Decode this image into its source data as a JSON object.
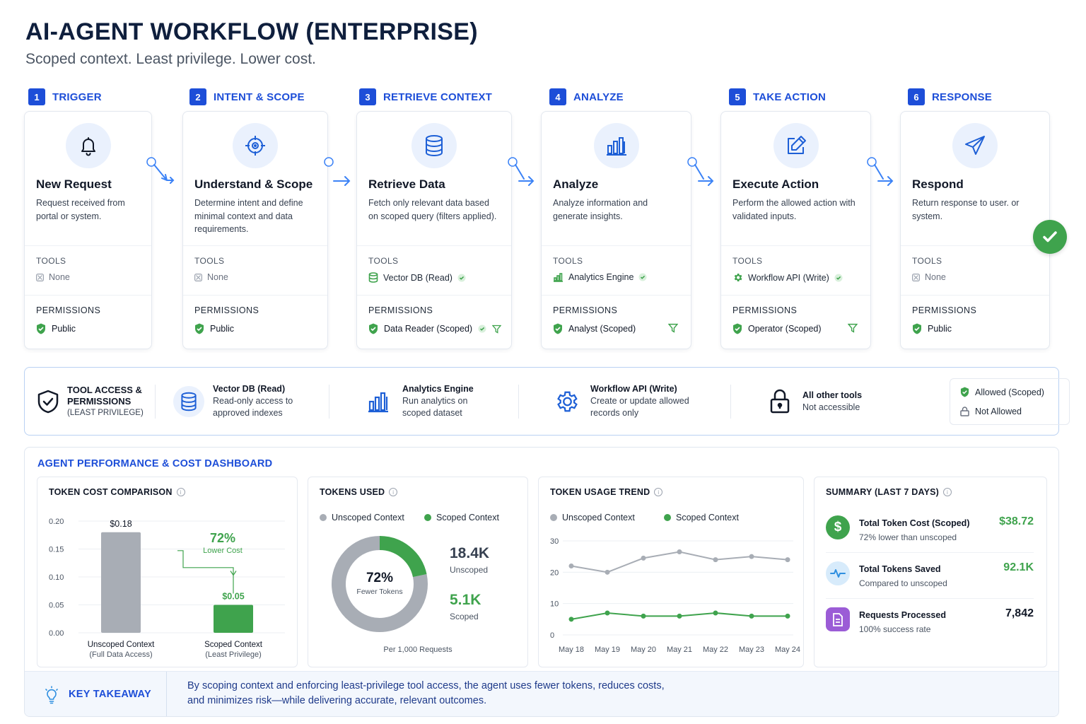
{
  "header": {
    "title": "AI-AGENT WORKFLOW (ENTERPRISE)",
    "subtitle": "Scoped context. Least privilege. Lower cost."
  },
  "steps": [
    {
      "num": "1",
      "label": "TRIGGER",
      "title": "New Request",
      "desc": "Request received from portal or system.",
      "tools_label": "TOOLS",
      "tool": "None",
      "tool_icon": "none-icon",
      "perm_label": "PERMISSIONS",
      "perm": "Public"
    },
    {
      "num": "2",
      "label": "INTENT & SCOPE",
      "title": "Understand & Scope",
      "desc": "Determine intent and define minimal context and data requirements.",
      "tools_label": "TOOLS",
      "tool": "None",
      "tool_icon": "none-icon",
      "perm_label": "PERMISSIONS",
      "perm": "Public"
    },
    {
      "num": "3",
      "label": "RETRIEVE CONTEXT",
      "title": "Retrieve Data",
      "desc": "Fetch only relevant data based on scoped query (filters applied).",
      "tools_label": "TOOLS",
      "tool": "Vector DB (Read)",
      "tool_icon": "database-icon",
      "perm_label": "PERMISSIONS",
      "perm": "Data Reader (Scoped)"
    },
    {
      "num": "4",
      "label": "ANALYZE",
      "title": "Analyze",
      "desc": "Analyze information and generate insights.",
      "tools_label": "TOOLS",
      "tool": "Analytics Engine",
      "tool_icon": "bar-chart-icon",
      "perm_label": "PERMISSIONS",
      "perm": "Analyst (Scoped)"
    },
    {
      "num": "5",
      "label": "TAKE ACTION",
      "title": "Execute Action",
      "desc": "Perform the allowed action with validated inputs.",
      "tools_label": "TOOLS",
      "tool": "Workflow API (Write)",
      "tool_icon": "gear-icon",
      "perm_label": "PERMISSIONS",
      "perm": "Operator (Scoped)"
    },
    {
      "num": "6",
      "label": "RESPONSE",
      "title": "Respond",
      "desc": "Return response to user. or system.",
      "tools_label": "TOOLS",
      "tool": "None",
      "tool_icon": "none-icon",
      "perm_label": "PERMISSIONS",
      "perm": "Public"
    }
  ],
  "tool_access": {
    "title_line1": "TOOL ACCESS &",
    "title_line2": "PERMISSIONS",
    "title_line3": "(LEAST PRIVILEGE)",
    "items": [
      {
        "title": "Vector DB (Read)",
        "line1": "Read-only access to",
        "line2": "approved indexes",
        "icon": "database-icon"
      },
      {
        "title": "Analytics Engine",
        "line1": "Run analytics on",
        "line2": "scoped dataset",
        "icon": "bar-chart-icon"
      },
      {
        "title": "Workflow API (Write)",
        "line1": "Create or update allowed",
        "line2": "records only",
        "icon": "gear-icon"
      },
      {
        "title": "All other tools",
        "line1": "Not accessible",
        "line2": "",
        "icon": "lock-icon"
      }
    ],
    "legend": {
      "allowed": "Allowed (Scoped)",
      "not_allowed": "Not Allowed"
    }
  },
  "dashboard": {
    "title": "AGENT PERFORMANCE & COST DASHBOARD",
    "cost": {
      "title": "TOKEN COST COMPARISON",
      "bars": [
        {
          "label": "Unscoped Context",
          "sub": "(Full Data Access)",
          "value_label": "$0.18"
        },
        {
          "label": "Scoped Context",
          "sub": "(Least Privilege)",
          "value_label": "$0.05"
        }
      ],
      "pct": "72%",
      "pct_label": "Lower Cost",
      "ticks": [
        "0.00",
        "0.05",
        "0.10",
        "0.15",
        "0.20"
      ]
    },
    "tokens": {
      "title": "TOKENS USED",
      "legend_unscoped": "Unscoped Context",
      "legend_scoped": "Scoped Context",
      "center_pct": "72%",
      "center_label": "Fewer Tokens",
      "unscoped_val": "18.4K",
      "unscoped_label": "Unscoped",
      "scoped_val": "5.1K",
      "scoped_label": "Scoped",
      "footer": "Per 1,000 Requests"
    },
    "trend": {
      "title": "TOKEN USAGE TREND",
      "legend_unscoped": "Unscoped Context",
      "legend_scoped": "Scoped Context",
      "y_ticks": [
        "0",
        "10",
        "20",
        "30"
      ]
    },
    "summary": {
      "title": "SUMMARY (LAST 7 DAYS)",
      "rows": [
        {
          "title": "Total Token Cost (Scoped)",
          "sub": "72% lower than unscoped",
          "value": "$38.72",
          "icon": "dollar-icon"
        },
        {
          "title": "Total Tokens Saved",
          "sub": "Compared to unscoped",
          "value": "92.1K",
          "icon": "pulse-icon"
        },
        {
          "title": "Requests Processed",
          "sub": "100% success rate",
          "value": "7,842",
          "icon": "document-icon"
        }
      ]
    },
    "takeaway": {
      "label": "KEY TAKEAWAY",
      "line1": "By scoping context and enforcing least-privilege tool access, the agent uses fewer tokens, reduces costs,",
      "line2": "and minimizes risk—while delivering accurate, relevant outcomes."
    }
  },
  "colors": {
    "accent": "#1d4ed8",
    "green": "#3fa34d",
    "gray": "#a8adb5",
    "dark": "#0f1f3d"
  },
  "chart_data": [
    {
      "type": "bar",
      "title": "TOKEN COST COMPARISON",
      "categories": [
        "Unscoped Context",
        "Scoped Context"
      ],
      "values": [
        0.18,
        0.05
      ],
      "ylim": [
        0,
        0.2
      ],
      "grid": true
    },
    {
      "type": "pie",
      "title": "TOKENS USED",
      "labels": [
        "Unscoped Context",
        "Scoped Context"
      ],
      "values": [
        18.4,
        5.1
      ]
    },
    {
      "type": "line",
      "title": "TOKEN USAGE TREND",
      "x": [
        "May 18",
        "May 19",
        "May 20",
        "May 21",
        "May 22",
        "May 23",
        "May 24"
      ],
      "series": [
        {
          "name": "Unscoped Context",
          "values": [
            22,
            20,
            24.5,
            26.5,
            24,
            25,
            24
          ]
        },
        {
          "name": "Scoped Context",
          "values": [
            5,
            7,
            6,
            6,
            7,
            6,
            6
          ]
        }
      ],
      "ylim": [
        0,
        30
      ],
      "grid": true,
      "legend": "top"
    }
  ]
}
